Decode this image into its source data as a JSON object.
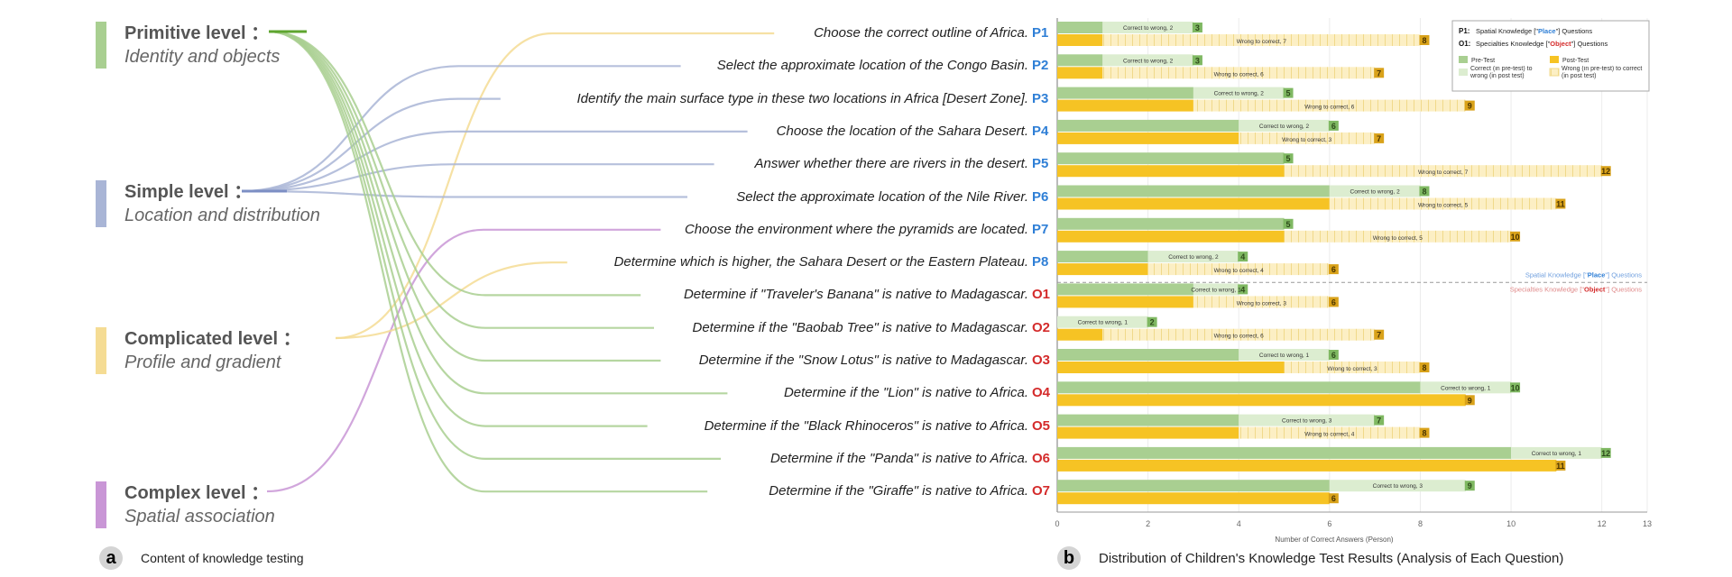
{
  "levels": [
    {
      "title": "Primitive level",
      "subtitle": "Identity and objects",
      "color": "#a9cf91",
      "line_color": "#5ea52f"
    },
    {
      "title": "Simple level",
      "subtitle": "Location and distribution",
      "color": "#a9b5d6",
      "line_color": "#7d8fc4"
    },
    {
      "title": "Complicated level",
      "subtitle": "Profile and gradient",
      "color": "#f5dc94",
      "line_color": "#f2d27a"
    },
    {
      "title": "Complex level",
      "subtitle": "Spatial association",
      "color": "#c996d6",
      "line_color": "#b469c9"
    }
  ],
  "level_colon": "：",
  "questions": [
    {
      "id": "P1",
      "text": "Choose the correct outline of Africa.",
      "level": 2
    },
    {
      "id": "P2",
      "text": "Select the approximate location of the Congo Basin.",
      "level": 1
    },
    {
      "id": "P3",
      "text": "Identify the main surface type in these two locations in Africa [Desert Zone].",
      "level": 1
    },
    {
      "id": "P4",
      "text": "Choose the location of the Sahara Desert.",
      "level": 1
    },
    {
      "id": "P5",
      "text": "Answer whether there are rivers in the desert.",
      "level": 1
    },
    {
      "id": "P6",
      "text": "Select the approximate location of the Nile River.",
      "level": 1
    },
    {
      "id": "P7",
      "text": "Choose the environment where the pyramids are located.",
      "level": 3
    },
    {
      "id": "P8",
      "text": "Determine which is higher, the Sahara Desert or the Eastern Plateau.",
      "level": 2
    },
    {
      "id": "O1",
      "text": "Determine if \"Traveler's Banana\" is native to Madagascar.",
      "level": 0
    },
    {
      "id": "O2",
      "text": "Determine if the \"Baobab Tree\" is native to Madagascar.",
      "level": 0
    },
    {
      "id": "O3",
      "text": "Determine if the \"Snow Lotus\" is native to Madagascar.",
      "level": 0
    },
    {
      "id": "O4",
      "text": "Determine if the \"Lion\" is native to Africa.",
      "level": 0
    },
    {
      "id": "O5",
      "text": "Determine if the \"Black Rhinoceros\" is native to Africa.",
      "level": 0
    },
    {
      "id": "O6",
      "text": "Determine if the \"Panda\" is native to Africa.",
      "level": 0
    },
    {
      "id": "O7",
      "text": "Determine if the \"Giraffe\" is native to Africa.",
      "level": 0
    }
  ],
  "id_colors": {
    "P": "#2f7fd6",
    "O": "#d42b2b"
  },
  "panel_a": {
    "letter": "a",
    "caption": "Content of knowledge testing"
  },
  "panel_b": {
    "letter": "b",
    "caption": "Distribution of Children's Knowledge Test Results (Analysis of Each Question)"
  },
  "chart_data": {
    "type": "bar",
    "orientation": "horizontal",
    "categories": [
      "P1",
      "P2",
      "P3",
      "P4",
      "P5",
      "P6",
      "P7",
      "P8",
      "O1",
      "O2",
      "O3",
      "O4",
      "O5",
      "O6",
      "O7"
    ],
    "series": [
      {
        "name": "Pre-Test",
        "values": [
          1,
          1,
          3,
          4,
          5,
          6,
          5,
          2,
          3,
          0,
          4,
          8,
          4,
          10,
          6
        ],
        "color": "#a9cf91"
      },
      {
        "name": "Post-Test",
        "values": [
          1,
          1,
          3,
          4,
          5,
          6,
          5,
          2,
          3,
          1,
          5,
          9,
          4,
          11,
          6
        ],
        "color": "#f6c324"
      }
    ],
    "pre_totals": [
      3,
      3,
      5,
      6,
      5,
      8,
      5,
      4,
      4,
      2,
      6,
      10,
      7,
      12,
      9
    ],
    "post_totals": [
      8,
      7,
      9,
      7,
      12,
      11,
      10,
      6,
      6,
      7,
      8,
      9,
      8,
      11,
      6
    ],
    "correct_to_wrong": [
      2,
      2,
      2,
      2,
      null,
      2,
      null,
      2,
      1,
      1,
      1,
      1,
      3,
      1,
      3
    ],
    "wrong_to_correct": [
      7,
      6,
      6,
      3,
      7,
      5,
      5,
      4,
      3,
      6,
      3,
      null,
      4,
      null,
      null
    ],
    "ctw_label": "Correct to wrong, ",
    "wtc_label": "Wrong to correct, ",
    "xlabel": "Number of Correct Answers (Person)",
    "xlim": [
      0,
      13
    ],
    "xticks": [
      0,
      2,
      4,
      6,
      8,
      10,
      12,
      13
    ],
    "legend": {
      "p_key": "P1:",
      "p_pre": "Spatial Knowledge [\"",
      "p_word": "Place",
      "p_post": "\"] Questions",
      "o_key": "O1:",
      "o_pre": "Specialties Knowledge [\"",
      "o_word": "Object",
      "o_post": "\"] Questions",
      "pre": "Pre-Test",
      "post": "Post-Test",
      "ctw": "Correct (in pre-test) to wrong (in post test)",
      "wtc": "Wrong (in pre-test) to correct (in post test)"
    },
    "divider": {
      "p_pre": "Spatial Knowledge [\"",
      "p_word": "Place",
      "p_post": "\"] Questions",
      "o_pre": "Specialties Knowledge [\"",
      "o_word": "Object",
      "o_post": "\"] Questions"
    }
  }
}
